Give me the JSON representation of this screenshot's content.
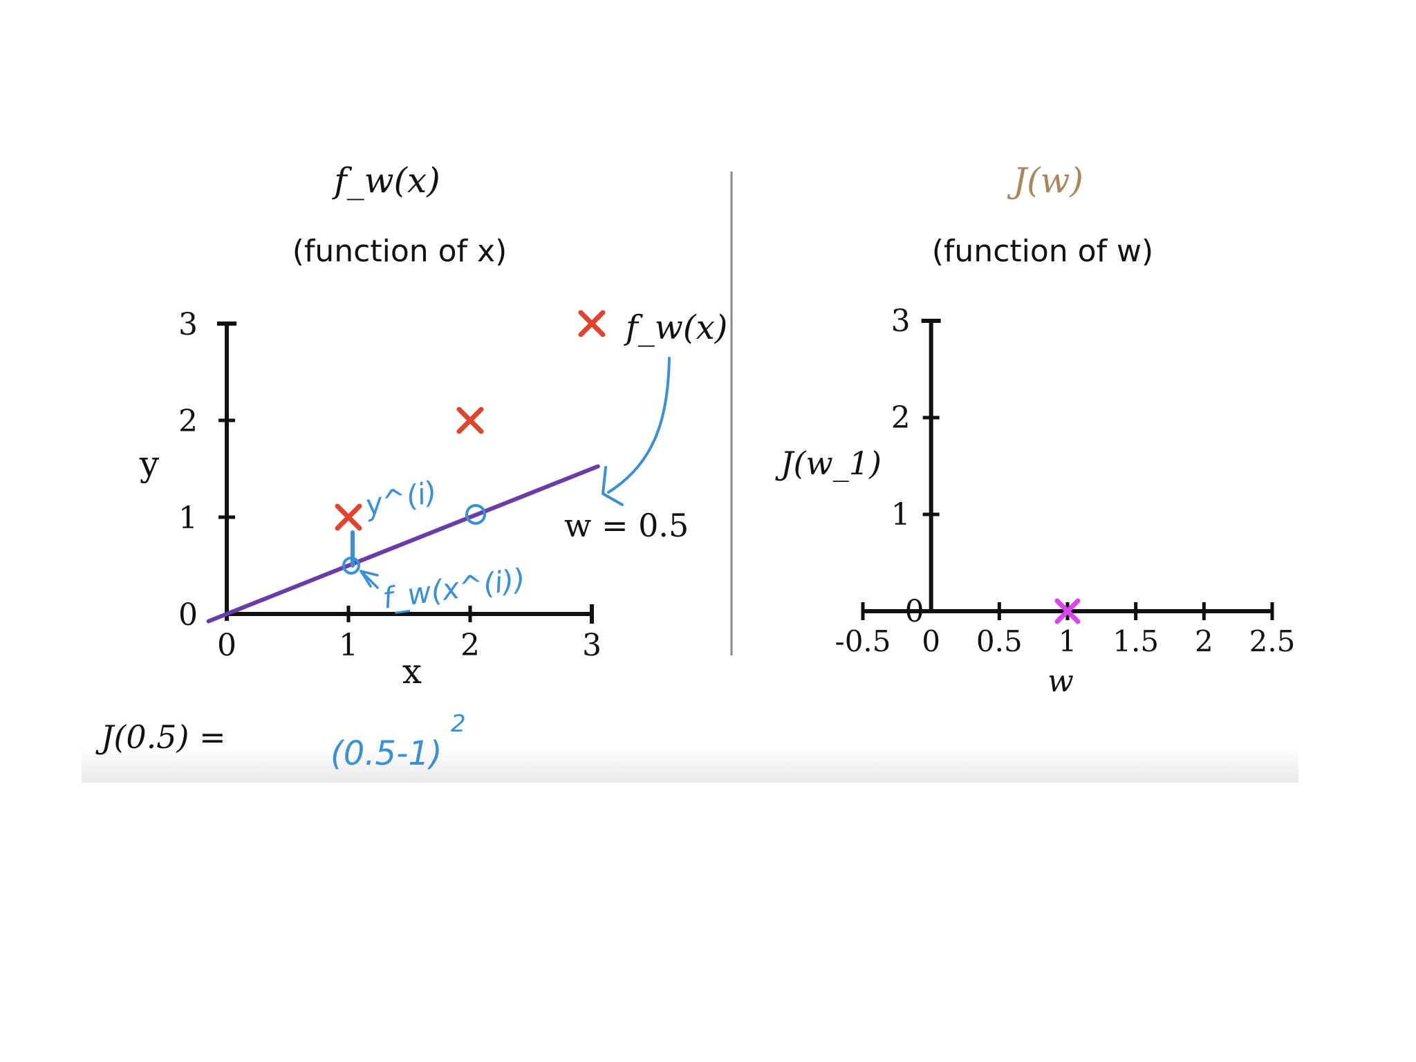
{
  "chart_data": [
    {
      "type": "scatter",
      "title": "f_w(x)",
      "subtitle": "(function of x)",
      "xlabel": "x",
      "ylabel": "y",
      "xlim": [
        0,
        3
      ],
      "ylim": [
        0,
        3
      ],
      "x_ticks": [
        "0",
        "1",
        "2",
        "3"
      ],
      "y_ticks": [
        "0",
        "1",
        "2",
        "3"
      ],
      "points": [
        {
          "x": 1,
          "y": 1
        },
        {
          "x": 2,
          "y": 2
        },
        {
          "x": 3,
          "y": 3
        }
      ],
      "points_color": "#e0452b",
      "points_label": "f_w(x)",
      "fit_line": {
        "w": 0.5,
        "x": [
          0,
          3
        ],
        "color": "#6a3da6"
      },
      "line_label": "w = 0.5",
      "annotations": {
        "y_label": "y^(i)",
        "f_label": "f_w(x^(i))",
        "color": "#3a90d8"
      }
    },
    {
      "type": "scatter",
      "title": "J(w)",
      "title_color": "#a8875a",
      "subtitle": "(function of w)",
      "xlabel": "w",
      "ylabel": "J(w_1)",
      "xlim": [
        -0.5,
        2.5
      ],
      "ylim": [
        0,
        3
      ],
      "x_ticks": [
        "-0.5",
        "0",
        "0.5",
        "1",
        "1.5",
        "2",
        "2.5"
      ],
      "y_ticks": [
        "0",
        "1",
        "2",
        "3"
      ],
      "points": [
        {
          "x": 1,
          "y": 0
        }
      ],
      "points_color": "#d946ef"
    }
  ],
  "equation": {
    "lhs": "J(0.5) =",
    "rhs": "(0.5-1)",
    "exponent": "2",
    "rhs_color": "#3a90d8"
  }
}
